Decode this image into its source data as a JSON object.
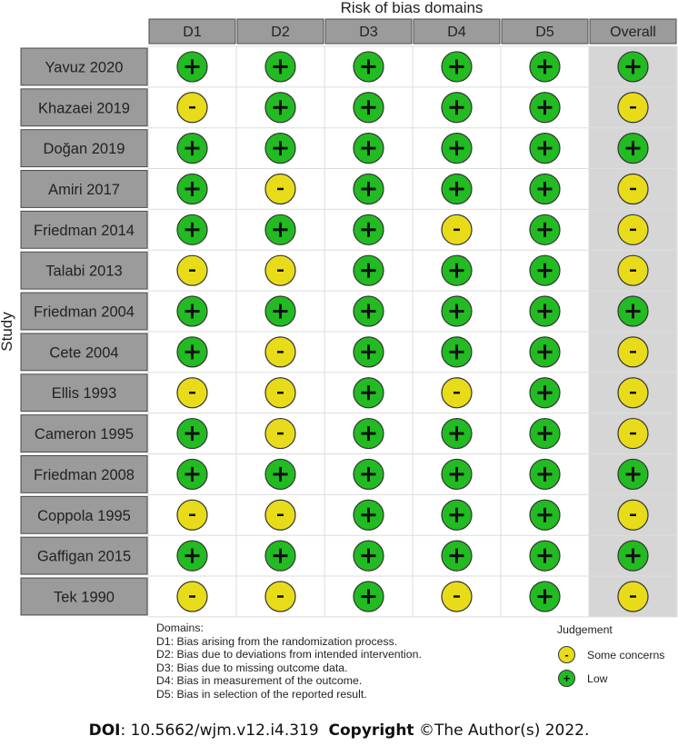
{
  "chart_data": {
    "type": "table",
    "title": "Risk of bias domains",
    "ylabel": "Study",
    "columns": [
      "D1",
      "D2",
      "D3",
      "D4",
      "D5",
      "Overall"
    ],
    "studies": [
      "Yavuz 2020",
      "Khazaei 2019",
      "Doğan 2019",
      "Amiri 2017",
      "Friedman 2014",
      "Talabi 2013",
      "Friedman 2004",
      "Cete 2004",
      "Ellis 1993",
      "Cameron 1995",
      "Friedman 2008",
      "Coppola 1995",
      "Gaffigan 2015",
      "Tek 1990"
    ],
    "judgements": [
      [
        "low",
        "low",
        "low",
        "low",
        "low",
        "low"
      ],
      [
        "some",
        "low",
        "low",
        "low",
        "low",
        "some"
      ],
      [
        "low",
        "low",
        "low",
        "low",
        "low",
        "low"
      ],
      [
        "low",
        "some",
        "low",
        "low",
        "low",
        "some"
      ],
      [
        "low",
        "low",
        "low",
        "some",
        "low",
        "some"
      ],
      [
        "some",
        "some",
        "low",
        "low",
        "low",
        "some"
      ],
      [
        "low",
        "low",
        "low",
        "low",
        "low",
        "low"
      ],
      [
        "low",
        "some",
        "low",
        "low",
        "low",
        "some"
      ],
      [
        "some",
        "some",
        "low",
        "some",
        "low",
        "some"
      ],
      [
        "low",
        "some",
        "low",
        "low",
        "low",
        "some"
      ],
      [
        "low",
        "low",
        "low",
        "low",
        "low",
        "low"
      ],
      [
        "some",
        "some",
        "low",
        "low",
        "low",
        "some"
      ],
      [
        "low",
        "low",
        "low",
        "low",
        "low",
        "low"
      ],
      [
        "some",
        "some",
        "low",
        "some",
        "low",
        "some"
      ]
    ],
    "symbols": {
      "low": "+",
      "some": "-"
    },
    "colors": {
      "low": "#22bb22",
      "some": "#e8dc1a",
      "header": "#9b9b9b",
      "overall_bg": "#d6d6d6",
      "cell_bg": "#ffffff"
    }
  },
  "legend": {
    "domains_title": "Domains:",
    "domains": [
      "D1: Bias arising from the randomization process.",
      "D2: Bias due to deviations from intended intervention.",
      "D3: Bias due to missing outcome data.",
      "D4: Bias in measurement of the outcome.",
      "D5: Bias in selection of the reported result."
    ],
    "judgement_title": "Judgement",
    "judgement_items": [
      {
        "symbol": "-",
        "label": "Some concerns",
        "color": "#e8dc1a"
      },
      {
        "symbol": "+",
        "label": "Low",
        "color": "#22bb22"
      }
    ]
  },
  "footer": {
    "doi_label": "DOI",
    "doi_value": ": 10.5662/wjm.v12.i4.319",
    "copyright_label": "Copyright",
    "copyright_value": " ©The Author(s) 2022."
  }
}
